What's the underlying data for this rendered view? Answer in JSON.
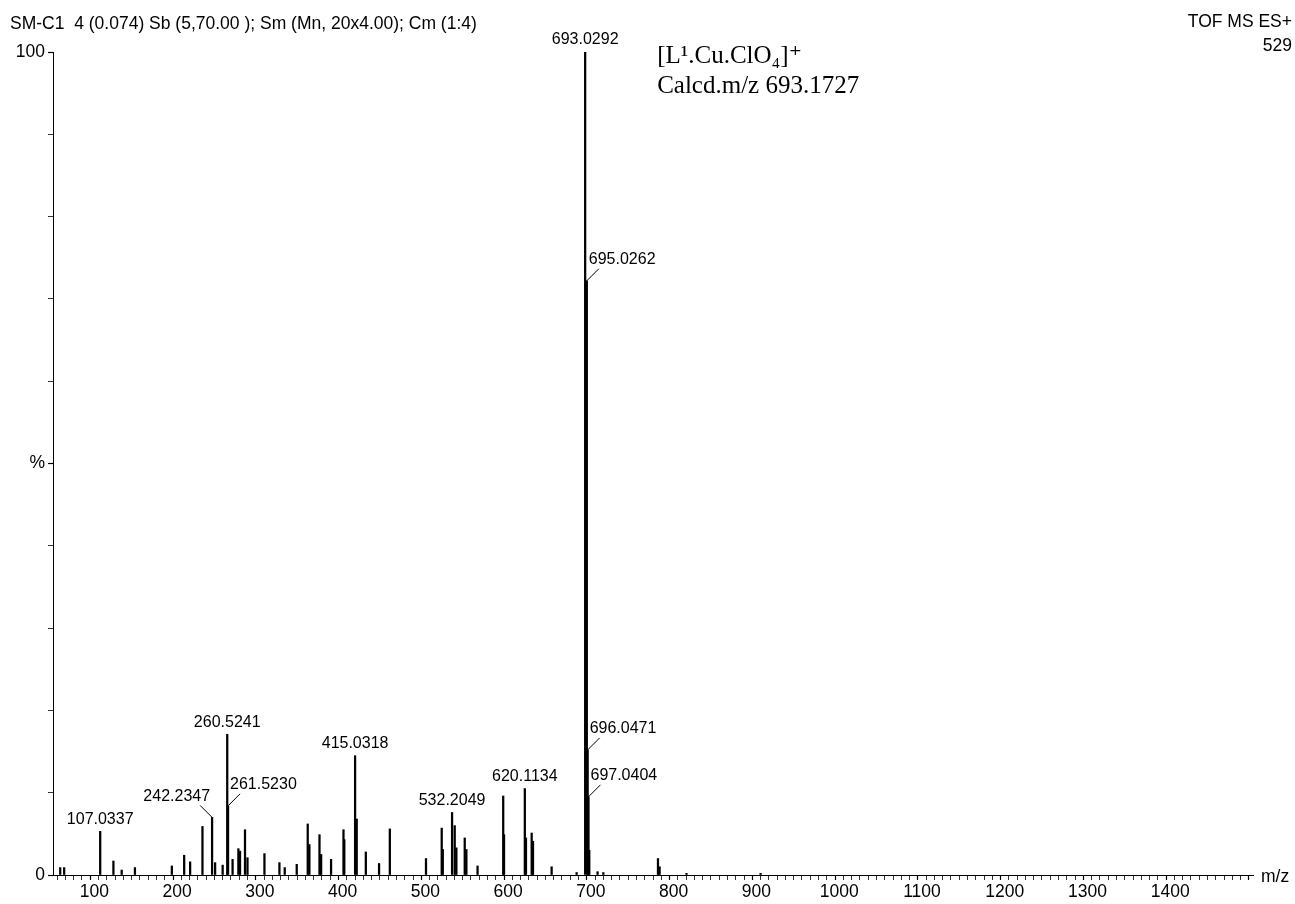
{
  "chart_data": {
    "type": "bar",
    "title": "SM-C1  4 (0.074) Sb (5,70.00 ); Sm (Mn, 20x4.00); Cm (1:4)",
    "subtitle": "TOF MS ES+",
    "xlabel": "m/z",
    "color": "#000000",
    "legend": false,
    "grid": false,
    "x": [
      58.7,
      63.5,
      107.0337,
      123,
      133,
      149,
      193.6,
      208.5,
      215.7,
      230.6,
      242.2347,
      245.9,
      255,
      260.5241,
      261.523,
      267,
      274,
      276,
      282,
      285,
      305.5,
      323.6,
      330,
      344.5,
      357.8,
      359.8,
      372,
      374,
      386,
      401,
      402,
      415.0318,
      417,
      428,
      444,
      457,
      500.7,
      519.7,
      521,
      532.2049,
      535.4,
      537.4,
      547.5,
      549.5,
      563,
      594,
      595,
      620.1134,
      621.5,
      628.4,
      630,
      652.5,
      682.7,
      693.0292,
      695.0262,
      696.0471,
      697.0404,
      698,
      708,
      715,
      781,
      783,
      815.5,
      905
    ],
    "values": [
      0.9,
      0.9,
      5.3,
      1.7,
      0.6,
      0.9,
      1.1,
      2.4,
      1.6,
      5.9,
      7.0,
      1.5,
      1.2,
      17.1,
      8.4,
      1.9,
      3.2,
      2.9,
      5.5,
      2.1,
      2.6,
      1.5,
      0.9,
      1.3,
      6.2,
      3.7,
      4.9,
      2.5,
      1.9,
      5.5,
      4.3,
      14.5,
      6.8,
      2.8,
      1.4,
      5.6,
      2.0,
      5.7,
      3.1,
      7.6,
      6.0,
      3.3,
      4.5,
      3.1,
      1.1,
      9.6,
      4.9,
      10.5,
      4.5,
      5.1,
      4.1,
      1.0,
      0.3,
      100,
      72.2,
      15.2,
      9.5,
      3.0,
      0.4,
      0.3,
      2.0,
      1.0,
      0.2,
      0.2
    ],
    "xlim": [
      50,
      1500
    ],
    "ylim": [
      0,
      100
    ],
    "yticks": [
      0,
      {
        "value": 10,
        "label": null
      },
      {
        "value": 20,
        "label": null
      },
      {
        "value": 30,
        "label": null
      },
      {
        "value": 40,
        "label": null
      },
      {
        "value": 50,
        "label": "%"
      },
      {
        "value": 60,
        "label": null
      },
      {
        "value": 70,
        "label": null
      },
      {
        "value": 80,
        "label": null
      },
      {
        "value": 90,
        "label": null
      },
      100
    ],
    "xticks": [
      {
        "value": 60,
        "label": null
      },
      {
        "value": 70,
        "label": null
      },
      {
        "value": 80,
        "label": null
      },
      {
        "value": 90,
        "label": null
      },
      100,
      {
        "value": 110,
        "label": null
      },
      {
        "value": 120,
        "label": null
      },
      {
        "value": 130,
        "label": null
      },
      {
        "value": 140,
        "label": null
      },
      {
        "value": 150,
        "label": null
      },
      {
        "value": 160,
        "label": null
      },
      {
        "value": 170,
        "label": null
      },
      {
        "value": 180,
        "label": null
      },
      {
        "value": 190,
        "label": null
      },
      200,
      {
        "value": 210,
        "label": null
      },
      {
        "value": 220,
        "label": null
      },
      {
        "value": 230,
        "label": null
      },
      {
        "value": 240,
        "label": null
      },
      {
        "value": 250,
        "label": null
      },
      {
        "value": 260,
        "label": null
      },
      {
        "value": 270,
        "label": null
      },
      {
        "value": 280,
        "label": null
      },
      {
        "value": 290,
        "label": null
      },
      300,
      {
        "value": 310,
        "label": null
      },
      {
        "value": 320,
        "label": null
      },
      {
        "value": 330,
        "label": null
      },
      {
        "value": 340,
        "label": null
      },
      {
        "value": 350,
        "label": null
      },
      {
        "value": 360,
        "label": null
      },
      {
        "value": 370,
        "label": null
      },
      {
        "value": 380,
        "label": null
      },
      {
        "value": 390,
        "label": null
      },
      400,
      {
        "value": 410,
        "label": null
      },
      {
        "value": 420,
        "label": null
      },
      {
        "value": 430,
        "label": null
      },
      {
        "value": 440,
        "label": null
      },
      {
        "value": 450,
        "label": null
      },
      {
        "value": 460,
        "label": null
      },
      {
        "value": 470,
        "label": null
      },
      {
        "value": 480,
        "label": null
      },
      {
        "value": 490,
        "label": null
      },
      500,
      {
        "value": 510,
        "label": null
      },
      {
        "value": 520,
        "label": null
      },
      {
        "value": 530,
        "label": null
      },
      {
        "value": 540,
        "label": null
      },
      {
        "value": 550,
        "label": null
      },
      {
        "value": 560,
        "label": null
      },
      {
        "value": 570,
        "label": null
      },
      {
        "value": 580,
        "label": null
      },
      {
        "value": 590,
        "label": null
      },
      600,
      {
        "value": 610,
        "label": null
      },
      {
        "value": 620,
        "label": null
      },
      {
        "value": 630,
        "label": null
      },
      {
        "value": 640,
        "label": null
      },
      {
        "value": 650,
        "label": null
      },
      {
        "value": 660,
        "label": null
      },
      {
        "value": 670,
        "label": null
      },
      {
        "value": 680,
        "label": null
      },
      {
        "value": 690,
        "label": null
      },
      700,
      {
        "value": 710,
        "label": null
      },
      {
        "value": 720,
        "label": null
      },
      {
        "value": 730,
        "label": null
      },
      {
        "value": 740,
        "label": null
      },
      {
        "value": 750,
        "label": null
      },
      {
        "value": 760,
        "label": null
      },
      {
        "value": 770,
        "label": null
      },
      {
        "value": 780,
        "label": null
      },
      {
        "value": 790,
        "label": null
      },
      800,
      {
        "value": 810,
        "label": null
      },
      {
        "value": 820,
        "label": null
      },
      {
        "value": 830,
        "label": null
      },
      {
        "value": 840,
        "label": null
      },
      {
        "value": 850,
        "label": null
      },
      {
        "value": 860,
        "label": null
      },
      {
        "value": 870,
        "label": null
      },
      {
        "value": 880,
        "label": null
      },
      {
        "value": 890,
        "label": null
      },
      900,
      {
        "value": 910,
        "label": null
      },
      {
        "value": 920,
        "label": null
      },
      {
        "value": 930,
        "label": null
      },
      {
        "value": 940,
        "label": null
      },
      {
        "value": 950,
        "label": null
      },
      {
        "value": 960,
        "label": null
      },
      {
        "value": 970,
        "label": null
      },
      {
        "value": 980,
        "label": null
      },
      {
        "value": 990,
        "label": null
      },
      1000,
      {
        "value": 1010,
        "label": null
      },
      {
        "value": 1020,
        "label": null
      },
      {
        "value": 1030,
        "label": null
      },
      {
        "value": 1040,
        "label": null
      },
      {
        "value": 1050,
        "label": null
      },
      {
        "value": 1060,
        "label": null
      },
      {
        "value": 1070,
        "label": null
      },
      {
        "value": 1080,
        "label": null
      },
      {
        "value": 1090,
        "label": null
      },
      1100,
      {
        "value": 1110,
        "label": null
      },
      {
        "value": 1120,
        "label": null
      },
      {
        "value": 1130,
        "label": null
      },
      {
        "value": 1140,
        "label": null
      },
      {
        "value": 1150,
        "label": null
      },
      {
        "value": 1160,
        "label": null
      },
      {
        "value": 1170,
        "label": null
      },
      {
        "value": 1180,
        "label": null
      },
      {
        "value": 1190,
        "label": null
      },
      1200,
      {
        "value": 1210,
        "label": null
      },
      {
        "value": 1220,
        "label": null
      },
      {
        "value": 1230,
        "label": null
      },
      {
        "value": 1240,
        "label": null
      },
      {
        "value": 1250,
        "label": null
      },
      {
        "value": 1260,
        "label": null
      },
      {
        "value": 1270,
        "label": null
      },
      {
        "value": 1280,
        "label": null
      },
      {
        "value": 1290,
        "label": null
      },
      1300,
      {
        "value": 1310,
        "label": null
      },
      {
        "value": 1320,
        "label": null
      },
      {
        "value": 1330,
        "label": null
      },
      {
        "value": 1340,
        "label": null
      },
      {
        "value": 1350,
        "label": null
      },
      {
        "value": 1360,
        "label": null
      },
      {
        "value": 1370,
        "label": null
      },
      {
        "value": 1380,
        "label": null
      },
      {
        "value": 1390,
        "label": null
      },
      1400,
      {
        "value": 1410,
        "label": null
      },
      {
        "value": 1420,
        "label": null
      },
      {
        "value": 1430,
        "label": null
      },
      {
        "value": 1440,
        "label": null
      },
      {
        "value": 1450,
        "label": null
      },
      {
        "value": 1460,
        "label": null
      },
      {
        "value": 1470,
        "label": null
      },
      {
        "value": 1480,
        "label": null
      },
      {
        "value": 1490,
        "label": null
      }
    ],
    "annotations": [
      "529",
      "[L¹.Cu.ClO₄]⁺",
      "Calcd.m/z 693.1727",
      {
        "text": "107.0337",
        "x": 107.0337,
        "y": 5.3
      },
      {
        "text": "242.2347",
        "x": 242.2347,
        "y": 7.0
      },
      {
        "text": "260.5241",
        "x": 260.5241,
        "y": 17.1
      },
      {
        "text": "261.5230",
        "x": 261.523,
        "y": 8.4
      },
      {
        "text": "415.0318",
        "x": 415.0318,
        "y": 14.5
      },
      {
        "text": "532.2049",
        "x": 532.2049,
        "y": 7.6
      },
      {
        "text": "620.1134",
        "x": 620.1134,
        "y": 10.5
      },
      {
        "text": "693.0292",
        "x": 693.0292,
        "y": 100
      },
      {
        "text": "695.0262",
        "x": 695.0262,
        "y": 72.2
      },
      {
        "text": "696.0471",
        "x": 696.0471,
        "y": 15.2
      },
      {
        "text": "697.0404",
        "x": 697.0404,
        "y": 9.5
      }
    ]
  }
}
